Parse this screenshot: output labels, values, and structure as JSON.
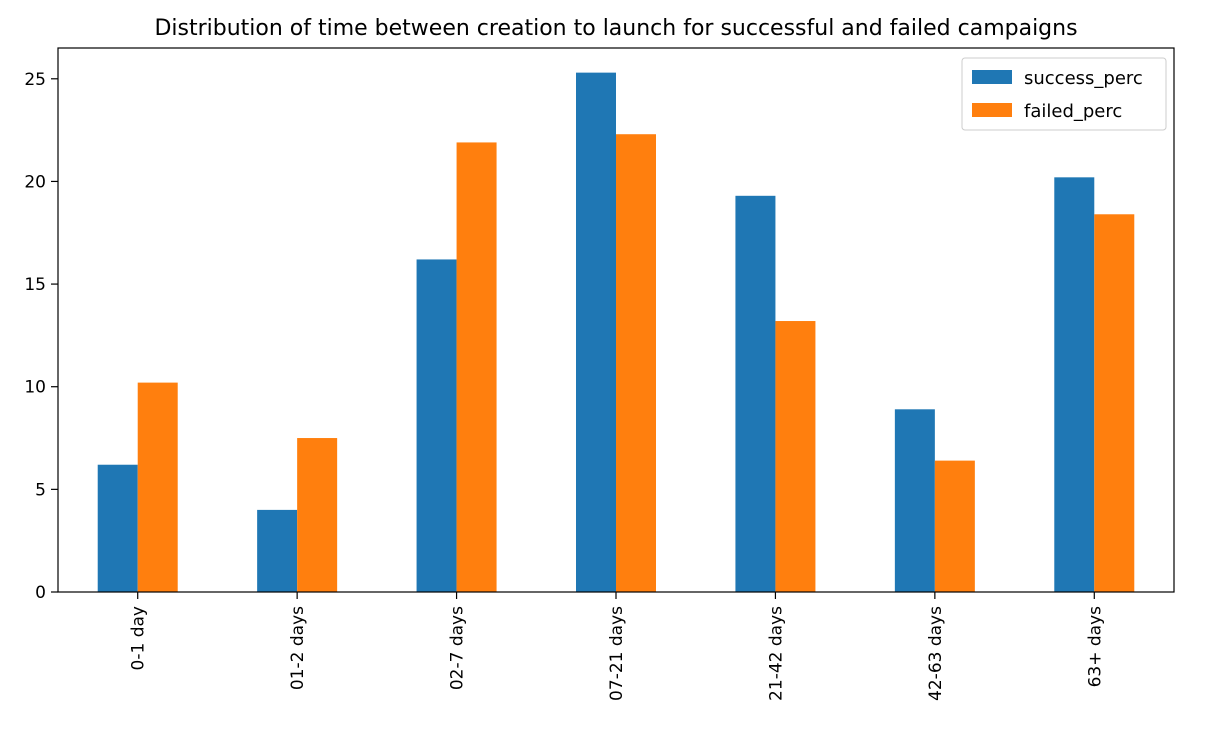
{
  "chart_data": {
    "type": "bar",
    "title": "Distribution of time between creation to launch for successful and failed campaigns",
    "xlabel": "",
    "ylabel": "",
    "categories": [
      "0-1 day",
      "01-2 days",
      "02-7 days",
      "07-21 days",
      "21-42 days",
      "42-63 days",
      "63+ days"
    ],
    "series": [
      {
        "name": "success_perc",
        "color": "#1f77b4",
        "values": [
          6.2,
          4.0,
          16.2,
          25.3,
          19.3,
          8.9,
          20.2
        ]
      },
      {
        "name": "failed_perc",
        "color": "#ff7f0e",
        "values": [
          10.2,
          7.5,
          21.9,
          22.3,
          13.2,
          6.4,
          18.4
        ]
      }
    ],
    "ylim": [
      0,
      26.5
    ],
    "yticks": [
      0,
      5,
      10,
      15,
      20,
      25
    ],
    "grid": false,
    "legend_position": "top-right"
  }
}
